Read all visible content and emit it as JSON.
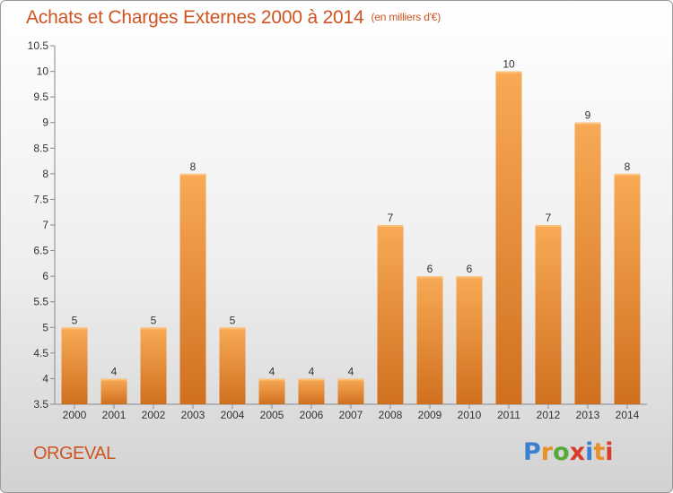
{
  "header": {
    "title": "Achats et Charges Externes 2000 à 2014",
    "unit": "(en milliers d'€)"
  },
  "footer": {
    "commune": "ORGEVAL",
    "logo_text": "Proxiti",
    "logo_colors": [
      "#3b7fd0",
      "#e8912a",
      "#58a83a",
      "#d93b2b",
      "#3b7fd0",
      "#e8912a",
      "#d93b2b"
    ]
  },
  "colors": {
    "accent": "#cc5522",
    "bar_top": "#f8aa55",
    "bar_bottom": "#d0701f"
  },
  "chart_data": {
    "type": "bar",
    "title": "Achats et Charges Externes 2000 à 2014",
    "xlabel": "",
    "ylabel": "",
    "categories": [
      "2000",
      "2001",
      "2002",
      "2003",
      "2004",
      "2005",
      "2006",
      "2007",
      "2008",
      "2009",
      "2010",
      "2011",
      "2012",
      "2013",
      "2014"
    ],
    "values": [
      5,
      4,
      5,
      8,
      5,
      4,
      4,
      4,
      7,
      6,
      6,
      10,
      7,
      9,
      8
    ],
    "ylim": [
      3.5,
      10.5
    ],
    "yticks": [
      "3.5",
      "4",
      "4.5",
      "5",
      "5.5",
      "6",
      "6.5",
      "7",
      "7.5",
      "8",
      "8.5",
      "9",
      "9.5",
      "10",
      "10.5"
    ],
    "grid": false,
    "legend": "none"
  }
}
